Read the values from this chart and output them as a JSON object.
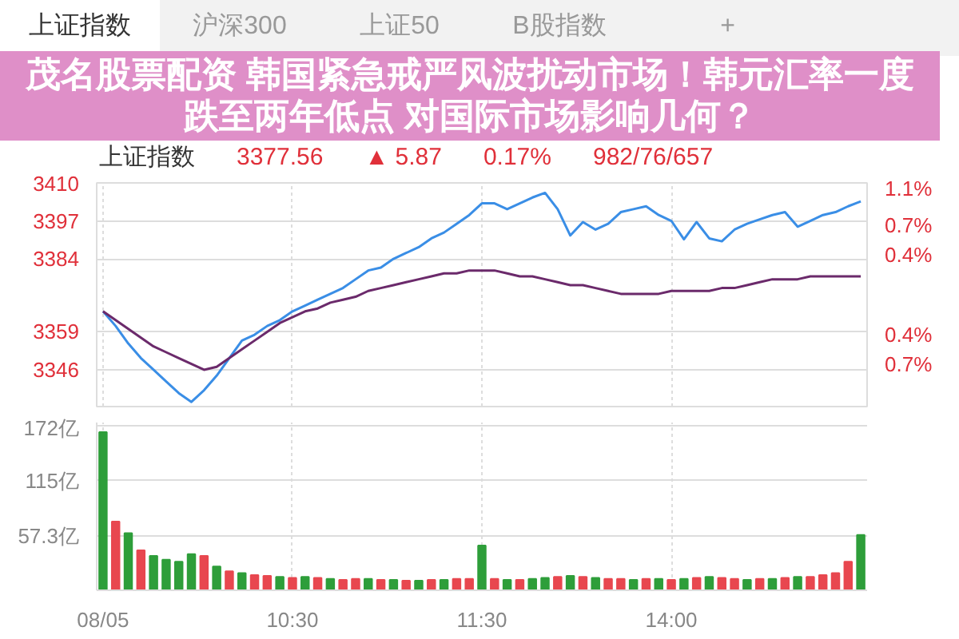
{
  "chart_data": [
    {
      "type": "line",
      "title": "茂名股票配资 韩国紧急戒严风波扰动市场！韩元汇率一度跌至两年低点 对国际市场影响几何？",
      "annotations": [
        "上证指数",
        "沪深300",
        "上证50",
        "B股指数",
        "+",
        "上证指数",
        "3377.56",
        "▲ 5.87",
        "0.17%",
        "982/76/657"
      ],
      "categories": [
        null,
        null,
        null,
        null,
        null,
        null,
        null,
        null,
        null,
        null,
        null,
        null,
        null,
        null,
        null,
        null,
        null,
        null,
        null,
        null,
        null,
        null,
        null,
        null,
        null,
        null,
        null,
        null,
        null,
        null,
        null,
        null,
        null,
        null,
        null,
        null,
        null,
        null,
        null,
        null,
        null,
        null,
        null,
        null,
        null,
        null,
        null,
        null,
        null,
        null,
        null,
        null,
        null,
        null,
        null,
        null,
        null,
        null,
        null,
        null,
        null
      ],
      "series": [
        {
          "color": "#3a8ee6",
          "values": [
            3366,
            3361,
            3355,
            3350,
            3346,
            3342,
            3338,
            3335,
            3339,
            3344,
            3350,
            3356,
            3358,
            3361,
            3363,
            3366,
            3368,
            3370,
            3372,
            3374,
            3377,
            3380,
            3381,
            3384,
            3386,
            3388,
            3391,
            3393,
            3396,
            3399,
            3403,
            3403,
            3401,
            3403,
            3405,
            3406.6,
            3401,
            3392,
            3396.6,
            3394,
            3396,
            3400,
            3401,
            3402,
            3399,
            3397,
            3390.7,
            3396.6,
            3391,
            3390,
            3394,
            3396,
            3397.5,
            3399,
            3400,
            3395,
            3397,
            3399,
            3400,
            3402,
            3403.7
          ]
        },
        {
          "color": "#6b2a6b",
          "values": [
            3366,
            3363,
            3360,
            3357,
            3354,
            3352,
            3350,
            3348,
            3346,
            3347,
            3350,
            3353,
            3356,
            3359,
            3362,
            3364,
            3366,
            3367,
            3369,
            3370,
            3371,
            3373,
            3374,
            3375,
            3376,
            3377,
            3378,
            3379,
            3379,
            3380,
            3380,
            3380,
            3379,
            3378,
            3378,
            3377,
            3376,
            3375,
            3375,
            3374,
            3373,
            3372,
            3372,
            3372,
            3372,
            3373,
            3373,
            3373,
            3373,
            3374,
            3374,
            3375,
            3376,
            3377,
            3377,
            3377,
            3378,
            3378,
            3378,
            3378,
            3378
          ]
        }
      ],
      "ylim": [
        3333.4,
        3410
      ],
      "yticks": [
        3410,
        3397,
        3384,
        3359,
        3346
      ],
      "y2lim": [
        -1.13,
        1.13
      ],
      "y2ticks": [
        {
          "value": 1.1,
          "label": "1.1%"
        },
        {
          "value": 0.7,
          "label": "0.7%"
        },
        {
          "value": 0.4,
          "label": "0.4%"
        },
        {
          "value": -0.4,
          "label": "0.4%"
        },
        {
          "value": -0.7,
          "label": "0.7%"
        }
      ],
      "grid": true,
      "tick_labels": "y",
      "line_style": "solid",
      "marker": "none"
    },
    {
      "type": "bar",
      "categories": [
        "08/05",
        null,
        null,
        null,
        null,
        null,
        null,
        null,
        null,
        null,
        null,
        null,
        null,
        null,
        null,
        "10:30",
        null,
        null,
        null,
        null,
        null,
        null,
        null,
        null,
        null,
        null,
        null,
        null,
        null,
        null,
        "11:30",
        null,
        null,
        null,
        null,
        null,
        null,
        null,
        null,
        null,
        null,
        null,
        null,
        null,
        null,
        "14:00",
        null,
        null,
        null,
        null,
        null,
        null,
        null,
        null,
        null,
        null,
        null,
        null,
        null,
        null,
        null
      ],
      "values": [
        166,
        72,
        60,
        42,
        36,
        32,
        30,
        38,
        36,
        25,
        20,
        18,
        16,
        15,
        14,
        13,
        14,
        13,
        12,
        11,
        12,
        12,
        11,
        11,
        10,
        10,
        11,
        11,
        12,
        12,
        47,
        12,
        11,
        11,
        12,
        13,
        14,
        15,
        14,
        13,
        12,
        12,
        11,
        12,
        12,
        11,
        12,
        13,
        14,
        13,
        12,
        11,
        12,
        12,
        13,
        14,
        14,
        16,
        18,
        30,
        58
      ],
      "colors": [
        "#2e9e3a",
        "#e8474f",
        "#2e9e3a",
        "#e8474f",
        "#2e9e3a",
        "#2e9e3a",
        "#2e9e3a",
        "#2e9e3a",
        "#e8474f",
        "#2e9e3a",
        "#e8474f",
        "#2e9e3a",
        "#e8474f",
        "#e8474f",
        "#2e9e3a",
        "#e8474f",
        "#2e9e3a",
        "#e8474f",
        "#2e9e3a",
        "#e8474f",
        "#e8474f",
        "#2e9e3a",
        "#e8474f",
        "#2e9e3a",
        "#e8474f",
        "#2e9e3a",
        "#e8474f",
        "#2e9e3a",
        "#e8474f",
        "#e8474f",
        "#2e9e3a",
        "#e8474f",
        "#2e9e3a",
        "#e8474f",
        "#2e9e3a",
        "#2e9e3a",
        "#e8474f",
        "#2e9e3a",
        "#e8474f",
        "#2e9e3a",
        "#e8474f",
        "#e8474f",
        "#2e9e3a",
        "#e8474f",
        "#2e9e3a",
        "#e8474f",
        "#2e9e3a",
        "#e8474f",
        "#2e9e3a",
        "#e8474f",
        "#e8474f",
        "#2e9e3a",
        "#e8474f",
        "#2e9e3a",
        "#e8474f",
        "#2e9e3a",
        "#e8474f",
        "#e8474f",
        "#e8474f",
        "#e8474f",
        "#2e9e3a"
      ],
      "ylim": [
        0,
        176
      ],
      "yticks": [
        {
          "value": 57.3,
          "label": "57.3亿"
        },
        {
          "value": 115,
          "label": "115亿"
        },
        {
          "value": 172,
          "label": "172亿"
        }
      ],
      "grid": true
    }
  ]
}
